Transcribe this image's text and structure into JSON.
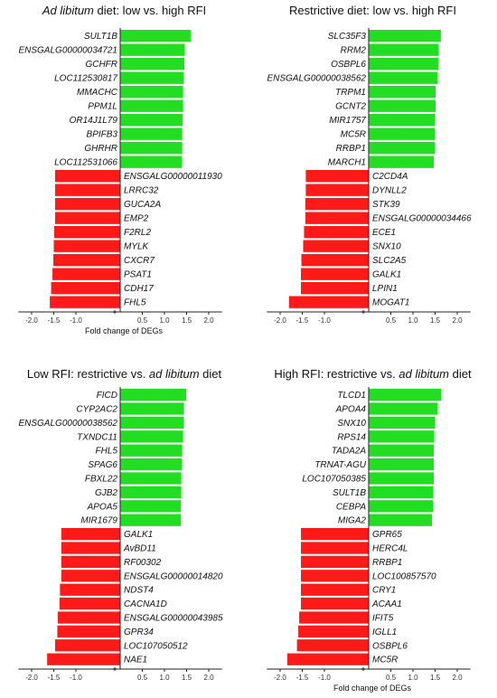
{
  "chart_data": [
    {
      "type": "bar",
      "title_prefix": "",
      "title_italic": "Ad libitum",
      "title_suffix": " diet: low vs. high RFI",
      "xlabel": "Fold change of DEGs",
      "xlim": [
        -2.3,
        2.3
      ],
      "xticks": [
        "-2.0",
        "-1.5",
        "-1.0",
        "0.5",
        "1.0",
        "1.5",
        "2.0"
      ],
      "up": {
        "genes": [
          "SULT1B",
          "ENSGALG00000034721",
          "GCHFR",
          "LOC112530817",
          "MMACHC",
          "PPM1L",
          "OR14J1L79",
          "BPIFB3",
          "GHRHR",
          "LOC112531066"
        ],
        "values": [
          1.59,
          1.46,
          1.45,
          1.43,
          1.42,
          1.42,
          1.41,
          1.4,
          1.4,
          1.39
        ]
      },
      "down": {
        "genes": [
          "ENSGALG00000011930",
          "LRRC32",
          "GUCA2A",
          "EMP2",
          "F2RL2",
          "MYLK",
          "CXCR7",
          "PSAT1",
          "CDH17",
          "FHL5"
        ],
        "values": [
          -1.47,
          -1.47,
          -1.47,
          -1.47,
          -1.49,
          -1.5,
          -1.51,
          -1.53,
          -1.56,
          -1.59
        ]
      }
    },
    {
      "type": "bar",
      "title_prefix": "Restrictive diet: low vs. high RFI",
      "title_italic": "",
      "title_suffix": "",
      "xlabel": "",
      "xlim": [
        -2.3,
        2.3
      ],
      "xticks": [
        "-2.0",
        "-1.5",
        "-1.0",
        "0.5",
        "1.0",
        "1.5",
        "2.0"
      ],
      "up": {
        "genes": [
          "SLC35F3",
          "RRM2",
          "OSBPL6",
          "ENSGALG00000038562",
          "TRPM1",
          "GCNT2",
          "MIR1757",
          "MC5R",
          "RRBP1",
          "MARCH1"
        ],
        "values": [
          1.63,
          1.58,
          1.57,
          1.56,
          1.51,
          1.51,
          1.5,
          1.49,
          1.49,
          1.47
        ]
      },
      "down": {
        "genes": [
          "C2CD4A",
          "DYNLL2",
          "STK39",
          "ENSGALG00000034466",
          "ECE1",
          "SNX10",
          "SLC2A5",
          "GALK1",
          "LPIN1",
          "MOGAT1"
        ],
        "values": [
          -1.42,
          -1.42,
          -1.43,
          -1.43,
          -1.46,
          -1.48,
          -1.52,
          -1.53,
          -1.53,
          -1.8
        ]
      }
    },
    {
      "type": "bar",
      "title_prefix": "Low RFI: restrictive vs. ",
      "title_italic": "ad libitum",
      "title_suffix": " diet",
      "xlabel": "",
      "xlim": [
        -2.3,
        2.3
      ],
      "xticks": [
        "-2.0",
        "-1.5",
        "-1.0",
        "0.5",
        "1.0",
        "1.5",
        "2.0"
      ],
      "up": {
        "genes": [
          "FICD",
          "CYP2AC2",
          "ENSGALG00000038562",
          "TXNDC11",
          "FHL5",
          "SPAG6",
          "FBXL22",
          "GJB2",
          "APOA5",
          "MIR1679"
        ],
        "values": [
          1.49,
          1.44,
          1.44,
          1.42,
          1.4,
          1.39,
          1.38,
          1.38,
          1.37,
          1.37
        ]
      },
      "down": {
        "genes": [
          "GALK1",
          "AvBD11",
          "RF00302",
          "ENSGALG00000014820",
          "NDST4",
          "CACNA1D",
          "ENSGALG00000043985",
          "GPR34",
          "LOC107050512",
          "NAE1"
        ],
        "values": [
          -1.33,
          -1.33,
          -1.33,
          -1.33,
          -1.36,
          -1.37,
          -1.41,
          -1.42,
          -1.47,
          -1.65
        ]
      }
    },
    {
      "type": "bar",
      "title_prefix": "High RFI: restrictive vs. ",
      "title_italic": "ad libitum",
      "title_suffix": " diet",
      "xlabel": "Fold change of DEGs",
      "xlim": [
        -2.3,
        2.3
      ],
      "xticks": [
        "-2.0",
        "-1.5",
        "-1.0",
        "0.5",
        "1.0",
        "1.5",
        "2.0"
      ],
      "up": {
        "genes": [
          "TLCD1",
          "APOA4",
          "SNX10",
          "RPS14",
          "TADA2A",
          "TRNAT-AGU",
          "LOC107050385",
          "SULT1B",
          "CEBPA",
          "MIGA2"
        ],
        "values": [
          1.64,
          1.56,
          1.5,
          1.48,
          1.47,
          1.47,
          1.47,
          1.46,
          1.45,
          1.43
        ]
      },
      "down": {
        "genes": [
          "GPR65",
          "HERC4L",
          "RRBP1",
          "LOC100857570",
          "CRY1",
          "ACAA1",
          "IFIT5",
          "IGLL1",
          "OSBPL6",
          "MC5R"
        ],
        "values": [
          -1.53,
          -1.53,
          -1.53,
          -1.53,
          -1.53,
          -1.53,
          -1.57,
          -1.59,
          -1.62,
          -1.84
        ]
      }
    }
  ],
  "colors": {
    "up": "#22dd22",
    "down": "#ff1a1a",
    "axis": "#222222"
  }
}
